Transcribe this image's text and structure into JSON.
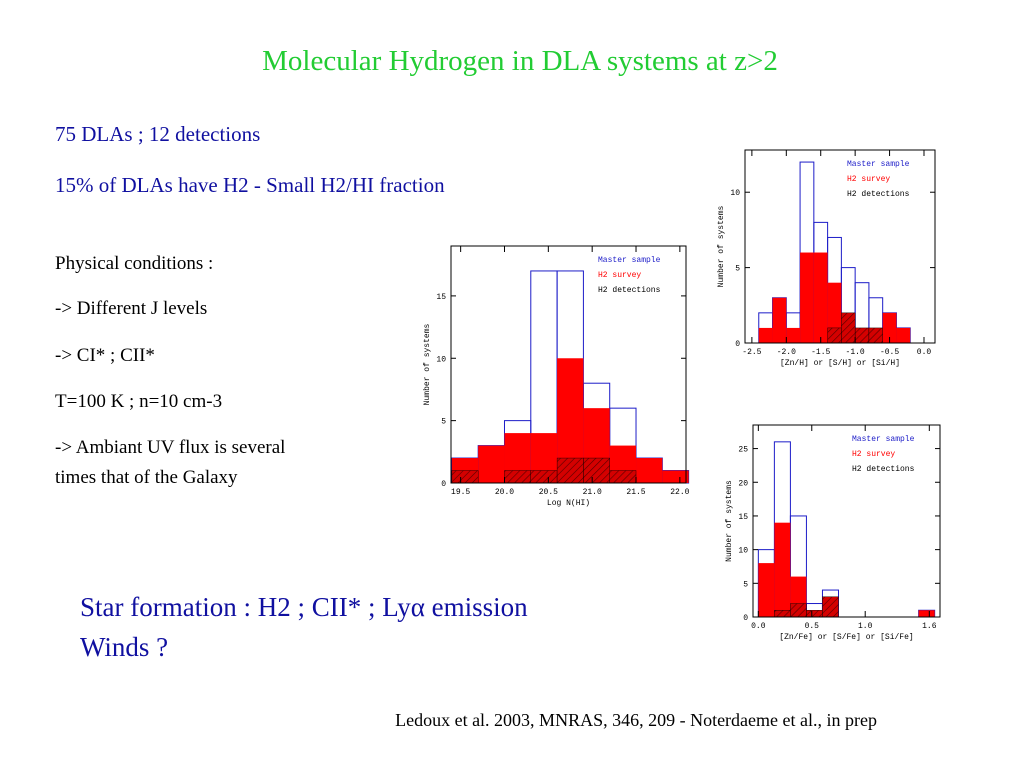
{
  "title": "Molecular Hydrogen in DLA systems at z>2",
  "intro": [
    "75 DLAs ; 12 detections",
    "15% of DLAs have H2 - Small H2/HI fraction"
  ],
  "conditions": [
    "Physical conditions :",
    "-> Different J levels",
    "-> CI* ; CII*",
    "T=100 K ; n=10 cm-3",
    "-> Ambiant UV flux is several",
    "times that of the Galaxy"
  ],
  "conclusion": [
    "Star formation : H2 ; CII* ; Lyα emission",
    "Winds ?"
  ],
  "reference": "Ledoux et al. 2003, MNRAS, 346, 209  -  Noterdaeme et al., in prep",
  "chart_data": [
    {
      "type": "histogram",
      "xlabel": "Log N(HI)",
      "ylabel": "Number of systems",
      "bins": [
        19.4,
        19.7,
        20.0,
        20.3,
        20.6,
        20.9,
        21.2,
        21.5,
        21.8,
        22.1
      ],
      "series": [
        {
          "name": "Master sample",
          "color": "#1c1cc8",
          "values": [
            2,
            3,
            5,
            17,
            17,
            8,
            6,
            2,
            1
          ]
        },
        {
          "name": "H2 survey",
          "color": "#ff0000",
          "values": [
            2,
            3,
            4,
            4,
            10,
            6,
            3,
            2,
            1
          ]
        },
        {
          "name": "H2 detections",
          "color": "#000000",
          "values": [
            1,
            0,
            1,
            1,
            2,
            2,
            1,
            0,
            0
          ]
        }
      ],
      "xlim": [
        19.39,
        22.07
      ],
      "ylim": [
        0,
        19
      ],
      "xticks": [
        19.5,
        {
          "value": 20,
          "label": "20.0"
        },
        20.5,
        {
          "value": 21,
          "label": "21.0"
        },
        21.5,
        {
          "value": 22,
          "label": "22.0"
        }
      ],
      "yticks": [
        0,
        5,
        10,
        15
      ],
      "legend": "upper right"
    },
    {
      "type": "histogram",
      "xlabel": "[Zn/H] or [S/H] or [Si/H]",
      "ylabel": "Number of systems",
      "bins": [
        -2.4,
        -2.2,
        -2.0,
        -1.8,
        -1.6,
        -1.4,
        -1.2,
        -1.0,
        -0.8,
        -0.6,
        -0.4,
        -0.2,
        0.0
      ],
      "series": [
        {
          "name": "Master sample",
          "color": "#1c1cc8",
          "values": [
            2,
            3,
            2,
            12,
            8,
            7,
            5,
            4,
            3,
            2,
            1,
            0
          ]
        },
        {
          "name": "H2 survey",
          "color": "#ff0000",
          "values": [
            1,
            3,
            1,
            6,
            6,
            4,
            2,
            1,
            1,
            2,
            1,
            0
          ]
        },
        {
          "name": "H2 detections",
          "color": "#000000",
          "values": [
            0,
            0,
            0,
            0,
            0,
            1,
            2,
            1,
            1,
            0,
            0,
            0
          ]
        }
      ],
      "xlim": [
        -2.6,
        0.16
      ],
      "ylim": [
        0,
        12.8
      ],
      "xticks": [
        -2.5,
        {
          "value": -2,
          "label": "-2.0"
        },
        -1.5,
        {
          "value": -1,
          "label": "-1.0"
        },
        -0.5,
        {
          "value": 0,
          "label": "0.0"
        }
      ],
      "yticks": [
        0,
        5,
        10
      ],
      "legend": "upper right"
    },
    {
      "type": "histogram",
      "xlabel": "[Zn/Fe] or [S/Fe] or [Si/Fe]",
      "ylabel": "Number of systems",
      "bins": [
        0.0,
        0.15,
        0.3,
        0.45,
        0.6,
        0.75,
        0.9,
        1.05,
        1.2,
        1.35,
        1.5,
        1.65
      ],
      "series": [
        {
          "name": "Master sample",
          "color": "#1c1cc8",
          "values": [
            10,
            26,
            15,
            2,
            4,
            0,
            0,
            0,
            0,
            0,
            1
          ]
        },
        {
          "name": "H2 survey",
          "color": "#ff0000",
          "values": [
            8,
            14,
            6,
            1,
            3,
            0,
            0,
            0,
            0,
            0,
            1
          ]
        },
        {
          "name": "H2 detections",
          "color": "#000000",
          "values": [
            0,
            1,
            2,
            1,
            3,
            0,
            0,
            0,
            0,
            0,
            0
          ]
        }
      ],
      "xlim": [
        -0.05,
        1.7
      ],
      "ylim": [
        0,
        28.5
      ],
      "xticks": [
        {
          "value": 0,
          "label": "0.0"
        },
        0.5,
        {
          "value": 1,
          "label": "1.0"
        },
        1.6
      ],
      "yticks": [
        0,
        5,
        10,
        15,
        20,
        25
      ],
      "legend": "upper right"
    }
  ]
}
